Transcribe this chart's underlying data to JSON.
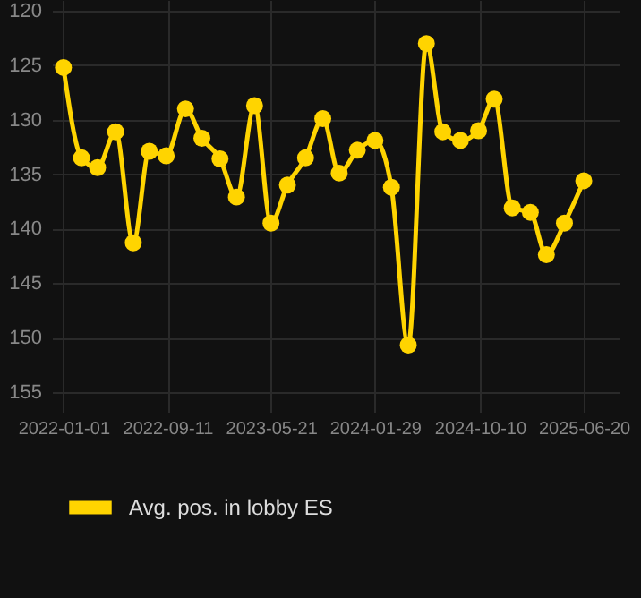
{
  "chart_data": {
    "type": "line",
    "x": [
      "2022-01-01",
      "2022-02-14",
      "2022-03-25",
      "2022-05-08",
      "2022-06-20",
      "2022-07-29",
      "2022-09-08",
      "2022-10-25",
      "2022-12-04",
      "2023-01-17",
      "2023-02-26",
      "2023-04-11",
      "2023-05-21",
      "2023-06-30",
      "2023-08-13",
      "2023-09-24",
      "2023-11-03",
      "2023-12-17",
      "2024-01-29",
      "2024-03-09",
      "2024-04-19",
      "2024-06-02",
      "2024-07-12",
      "2024-08-24",
      "2024-10-07",
      "2024-11-14",
      "2024-12-28",
      "2025-02-10",
      "2025-03-21",
      "2025-05-04",
      "2025-06-20"
    ],
    "series": [
      {
        "name": "Avg. pos. in lobby ES",
        "color": "#ffd400",
        "values": [
          125.2,
          133.5,
          134.4,
          131.1,
          141.3,
          132.9,
          133.3,
          129.0,
          131.7,
          133.6,
          137.1,
          128.7,
          139.5,
          136.0,
          133.5,
          129.9,
          134.9,
          132.8,
          131.9,
          136.2,
          150.7,
          123.0,
          131.1,
          131.9,
          131.0,
          128.1,
          138.1,
          138.5,
          142.4,
          139.5,
          135.6
        ]
      }
    ],
    "xlim": [
      "2021-12-04",
      "2025-09-15"
    ],
    "xticks": [
      "2022-01-01",
      "2022-09-11",
      "2023-05-21",
      "2024-01-29",
      "2024-10-10",
      "2025-06-20"
    ],
    "ylim": [
      156,
      119
    ],
    "yticks": [
      120,
      125,
      130,
      135,
      140,
      145,
      150,
      155
    ],
    "grid": true,
    "legend": "bottom",
    "marker": "circle",
    "line_style": "solid"
  }
}
